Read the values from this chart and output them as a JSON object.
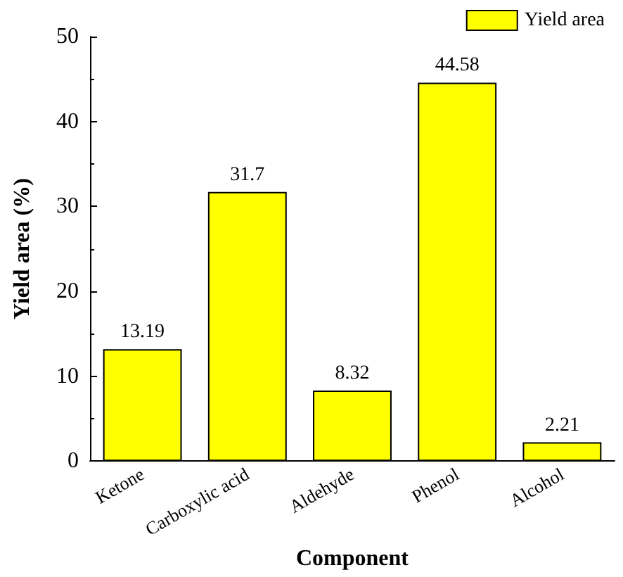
{
  "chart_data": {
    "type": "bar",
    "xlabel": "Component",
    "ylabel": "Yield area (%)",
    "categories": [
      "Ketone",
      "Carboxylic acid",
      "Aldehyde",
      "Phenol",
      "Alcohol"
    ],
    "series": [
      {
        "name": "Yield area",
        "color": "#ffff00",
        "values": [
          13.19,
          31.7,
          8.32,
          44.58,
          2.21
        ]
      }
    ],
    "ylim": [
      0,
      50
    ],
    "yticks": [
      0,
      10,
      20,
      30,
      40,
      50
    ],
    "data_labels": true,
    "legend": "top right",
    "grid": false
  }
}
